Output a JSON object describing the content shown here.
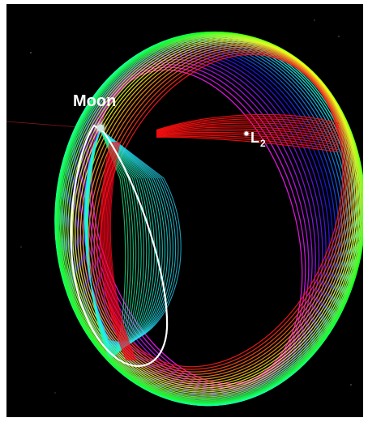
{
  "labels": {
    "moon": "Moon",
    "l2_main": "L",
    "l2_sub": "2"
  },
  "colors": {
    "background": "#000000",
    "highlight_orbit": "#ffffff",
    "body_marker": "#cfe8e0"
  }
}
